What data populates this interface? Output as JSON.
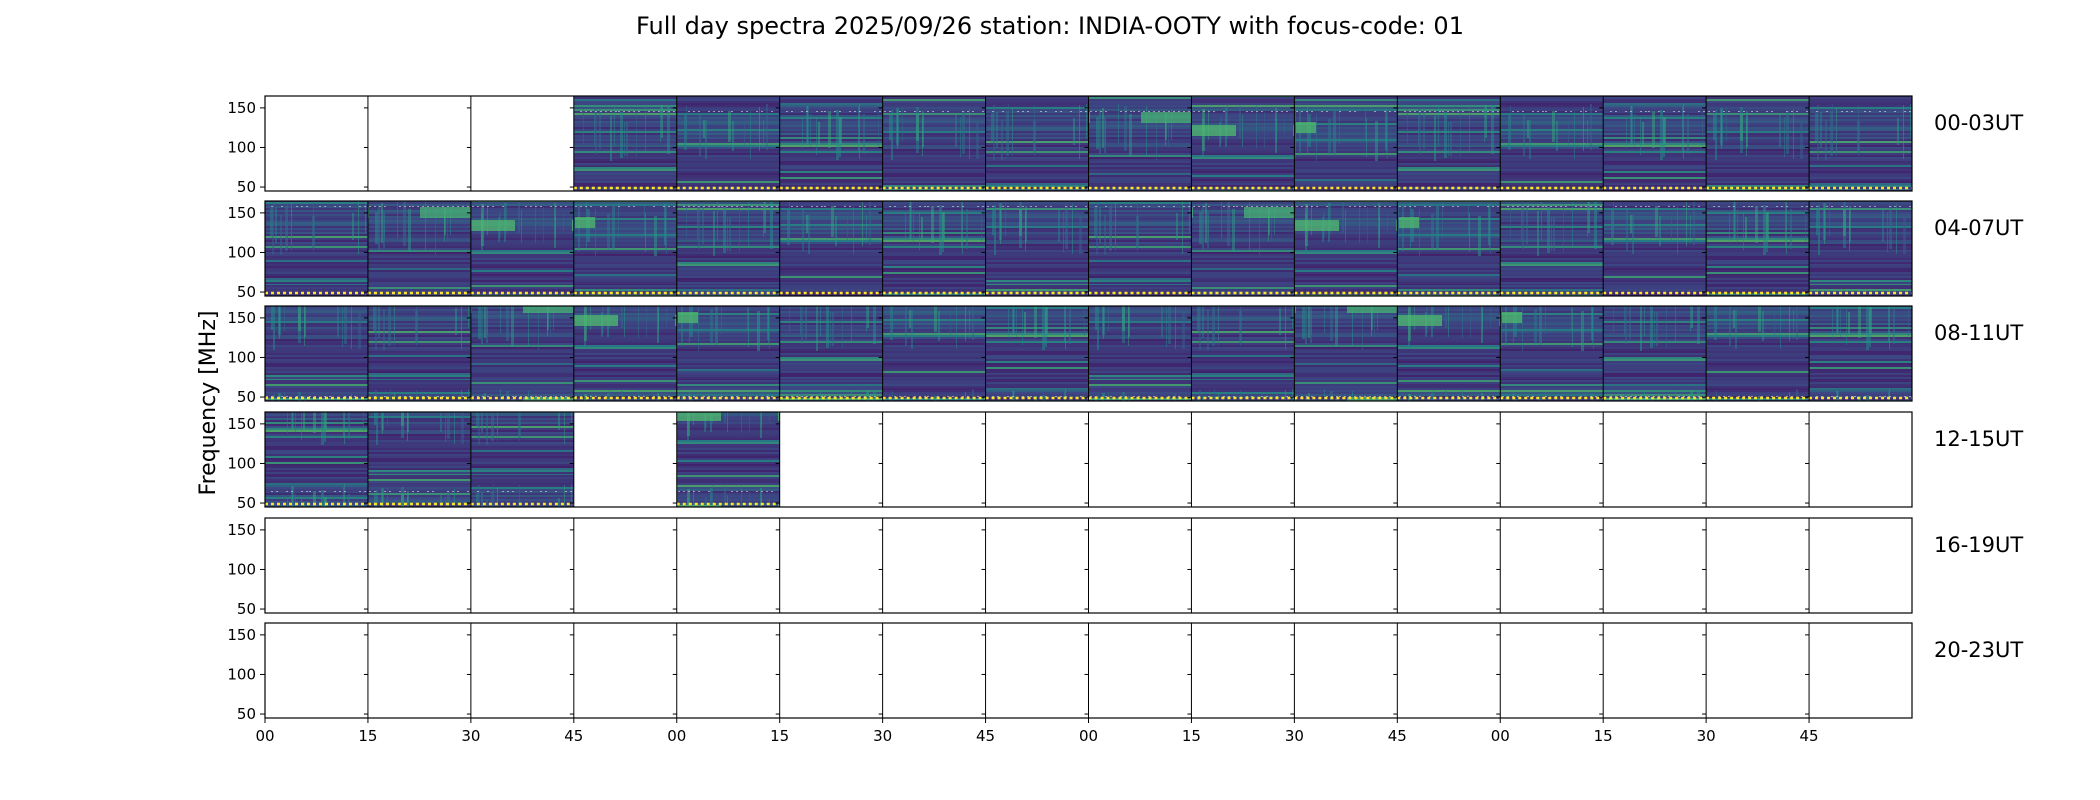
{
  "chart_data": {
    "type": "heatmap",
    "title": "Full day spectra 2025/09/26 station: INDIA-OOTY with focus-code: 01",
    "ylabel": "Frequency [MHz]",
    "xlabel": "",
    "ylim": [
      45,
      165
    ],
    "y_ticks": [
      50,
      100,
      150
    ],
    "x_tick_labels": [
      "00",
      "15",
      "30",
      "45",
      "00",
      "15",
      "30",
      "45",
      "00",
      "15",
      "30",
      "45",
      "00",
      "15",
      "30",
      "45"
    ],
    "colormap": [
      "#440154",
      "#3b528b",
      "#21918c",
      "#5ec962",
      "#fde725"
    ],
    "axis_color": "#000000",
    "rows": [
      {
        "label": "00-03UT",
        "panels": [
          0,
          0,
          0,
          1,
          1,
          1,
          1,
          1,
          1,
          1,
          1,
          1,
          1,
          1,
          1,
          1
        ]
      },
      {
        "label": "04-07UT",
        "panels": [
          1,
          1,
          1,
          1,
          1,
          1,
          1,
          1,
          1,
          1,
          1,
          1,
          1,
          1,
          1,
          1
        ]
      },
      {
        "label": "08-11UT",
        "panels": [
          1,
          1,
          1,
          1,
          1,
          1,
          1,
          1,
          1,
          1,
          1,
          1,
          1,
          1,
          1,
          1
        ]
      },
      {
        "label": "12-15UT",
        "panels": [
          1,
          1,
          1,
          0,
          1,
          0,
          0,
          0,
          0,
          0,
          0,
          0,
          0,
          0,
          0,
          0
        ]
      },
      {
        "label": "16-19UT",
        "panels": [
          0,
          0,
          0,
          0,
          0,
          0,
          0,
          0,
          0,
          0,
          0,
          0,
          0,
          0,
          0,
          0
        ]
      },
      {
        "label": "20-23UT",
        "panels": [
          0,
          0,
          0,
          0,
          0,
          0,
          0,
          0,
          0,
          0,
          0,
          0,
          0,
          0,
          0,
          0
        ]
      }
    ]
  }
}
